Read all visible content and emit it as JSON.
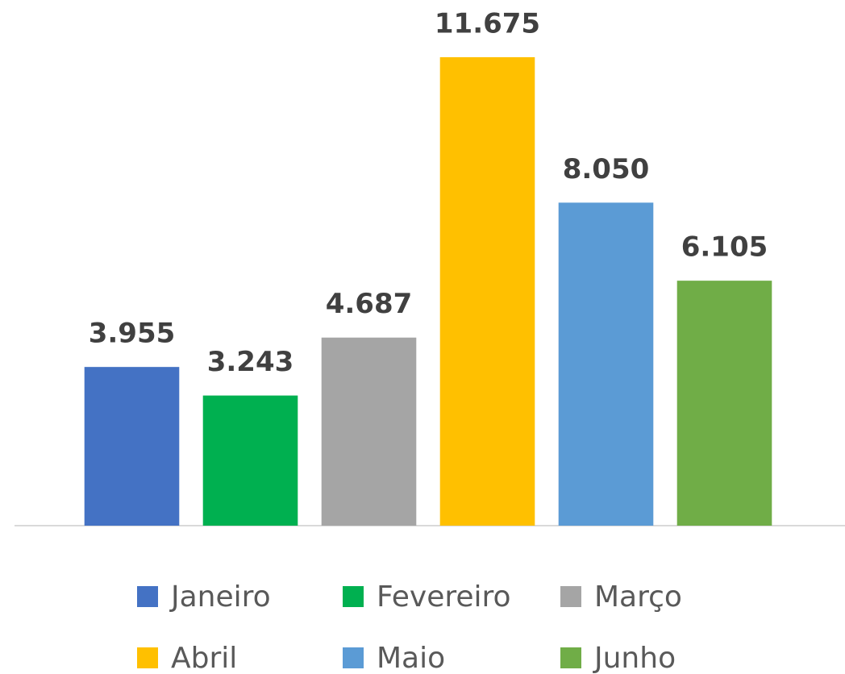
{
  "chart_data": {
    "type": "bar",
    "series": [
      {
        "name": "Janeiro",
        "color": "#4472c4",
        "values": [
          3955
        ],
        "value_labels": [
          "3.955"
        ]
      },
      {
        "name": "Fevereiro",
        "color": "#00b050",
        "values": [
          3243
        ],
        "value_labels": [
          "3.243"
        ]
      },
      {
        "name": "Março",
        "color": "#a5a5a5",
        "values": [
          4687
        ],
        "value_labels": [
          "4.687"
        ]
      },
      {
        "name": "Abril",
        "color": "#ffc000",
        "values": [
          11675
        ],
        "value_labels": [
          "11.675"
        ]
      },
      {
        "name": "Maio",
        "color": "#5b9bd5",
        "values": [
          8050
        ],
        "value_labels": [
          "8.050"
        ]
      },
      {
        "name": "Junho",
        "color": "#70ad47",
        "values": [
          6105
        ],
        "value_labels": [
          "6.105"
        ]
      }
    ],
    "ylim": [
      0,
      13100
    ],
    "legend": "bottom"
  }
}
